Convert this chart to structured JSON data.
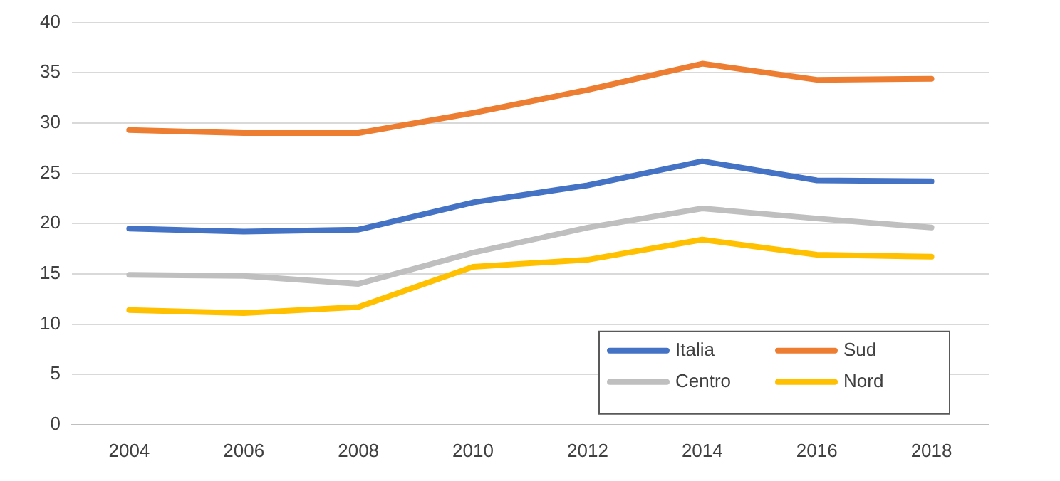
{
  "chart_data": {
    "type": "line",
    "categories": [
      "2004",
      "2006",
      "2008",
      "2010",
      "2012",
      "2014",
      "2016",
      "2018"
    ],
    "series": [
      {
        "name": "Italia",
        "color": "#4472c4",
        "values": [
          19.5,
          19.2,
          19.4,
          22.1,
          23.8,
          26.2,
          24.3,
          24.2
        ]
      },
      {
        "name": "Sud",
        "color": "#ed7d31",
        "values": [
          29.3,
          29.0,
          29.0,
          31.0,
          33.3,
          35.9,
          34.3,
          34.4
        ]
      },
      {
        "name": "Centro",
        "color": "#bfbfbf",
        "values": [
          14.9,
          14.8,
          14.0,
          17.1,
          19.6,
          21.5,
          20.5,
          19.6
        ]
      },
      {
        "name": "Nord",
        "color": "#ffc000",
        "values": [
          11.4,
          11.1,
          11.7,
          15.7,
          16.4,
          18.4,
          16.9,
          16.7
        ]
      }
    ],
    "ylim": [
      0,
      40
    ],
    "yticks": [
      0,
      5,
      10,
      15,
      20,
      25,
      30,
      35,
      40
    ],
    "grid": "y",
    "legend": "bottom right",
    "marker": "none",
    "line_style": "solid"
  }
}
